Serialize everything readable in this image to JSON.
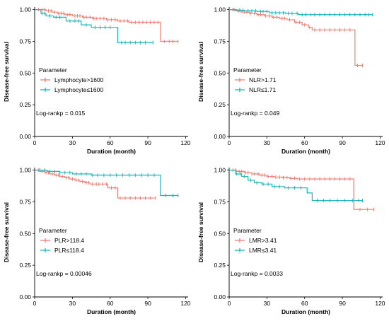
{
  "chart_data": [
    {
      "type": "line",
      "subtype": "kaplan-meier",
      "ylabel": "Disease-free survival",
      "xlabel": "Duration (month)",
      "xlim": [
        0,
        122
      ],
      "ylim": [
        0,
        1.02
      ],
      "xticks": [
        "0",
        "30",
        "60",
        "90",
        "120"
      ],
      "yticks": [
        "0.00",
        "0.25",
        "0.50",
        "0.75",
        "1.00"
      ],
      "legend_title": "Parameter",
      "annotation": "Log-rankp = 0.015",
      "series": [
        {
          "name": "Lymphocyte>1600",
          "color": "#F07F73",
          "x": [
            0,
            5,
            9,
            14,
            18,
            24,
            30,
            38,
            46,
            57,
            66,
            75,
            100,
            114
          ],
          "y": [
            1.0,
            1.0,
            0.99,
            0.98,
            0.97,
            0.96,
            0.95,
            0.94,
            0.93,
            0.92,
            0.91,
            0.9,
            0.75,
            0.75
          ],
          "censored_x": [
            3,
            6,
            8,
            11,
            13,
            16,
            19,
            21,
            23,
            26,
            28,
            32,
            34,
            36,
            39,
            41,
            44,
            47,
            49,
            52,
            55,
            58,
            61,
            64,
            68,
            71,
            74,
            77,
            80,
            83,
            86,
            89,
            92,
            95,
            98,
            103,
            107,
            110,
            114
          ]
        },
        {
          "name": "Lymphocyte≤1600",
          "color": "#1FB7BA",
          "x": [
            0,
            5,
            9,
            15,
            25,
            37,
            45,
            66,
            94
          ],
          "y": [
            1.0,
            0.97,
            0.95,
            0.94,
            0.91,
            0.88,
            0.86,
            0.74,
            0.74
          ],
          "censored_x": [
            6,
            8,
            12,
            17,
            20,
            28,
            32,
            35,
            41,
            48,
            52,
            56,
            60,
            69,
            72,
            76,
            80,
            84,
            88,
            94
          ]
        }
      ]
    },
    {
      "type": "line",
      "subtype": "kaplan-meier",
      "ylabel": "Disease-free survival",
      "xlabel": "Duration (month)",
      "xlim": [
        0,
        122
      ],
      "ylim": [
        0,
        1.02
      ],
      "xticks": [
        "0",
        "30",
        "60",
        "90",
        "120"
      ],
      "yticks": [
        "0.00",
        "0.25",
        "0.50",
        "0.75",
        "1.00"
      ],
      "legend_title": "Parameter",
      "annotation": "Log-rankp = 0.049",
      "series": [
        {
          "name": "NLR>1.71",
          "color": "#F07F73",
          "x": [
            0,
            5,
            10,
            16,
            22,
            28,
            34,
            40,
            46,
            52,
            58,
            63,
            66,
            99,
            100,
            106
          ],
          "y": [
            1.0,
            0.99,
            0.98,
            0.97,
            0.96,
            0.95,
            0.94,
            0.93,
            0.92,
            0.9,
            0.88,
            0.86,
            0.84,
            0.84,
            0.56,
            0.56
          ],
          "censored_x": [
            4,
            7,
            9,
            12,
            14,
            17,
            20,
            23,
            25,
            29,
            32,
            35,
            38,
            42,
            44,
            48,
            53,
            56,
            60,
            64,
            68,
            72,
            76,
            80,
            84,
            88,
            92,
            96,
            102,
            106
          ]
        },
        {
          "name": "NLR≤1.71",
          "color": "#1FB7BA",
          "x": [
            0,
            6,
            12,
            22,
            32,
            45,
            55,
            114
          ],
          "y": [
            1.0,
            0.995,
            0.99,
            0.985,
            0.975,
            0.97,
            0.96,
            0.96
          ],
          "censored_x": [
            3,
            8,
            11,
            15,
            18,
            21,
            25,
            27,
            30,
            34,
            37,
            40,
            43,
            47,
            50,
            54,
            58,
            61,
            65,
            68,
            72,
            76,
            80,
            84,
            88,
            92,
            96,
            100,
            104,
            108,
            111,
            114
          ]
        }
      ]
    },
    {
      "type": "line",
      "subtype": "kaplan-meier",
      "ylabel": "Disease-free survival",
      "xlabel": "Duration (month)",
      "xlim": [
        0,
        122
      ],
      "ylim": [
        0,
        1.02
      ],
      "xticks": [
        "0",
        "30",
        "60",
        "90",
        "120"
      ],
      "yticks": [
        "0.00",
        "0.25",
        "0.50",
        "0.75",
        "1.00"
      ],
      "legend_title": "Parameter",
      "annotation": "Log-rankp = 0.00046",
      "series": [
        {
          "name": "PLR>118.4",
          "color": "#F07F73",
          "x": [
            0,
            4,
            8,
            12,
            16,
            20,
            24,
            28,
            32,
            36,
            40,
            44,
            48,
            52,
            58,
            66,
            96
          ],
          "y": [
            1.0,
            0.99,
            0.98,
            0.97,
            0.96,
            0.95,
            0.94,
            0.93,
            0.92,
            0.91,
            0.9,
            0.89,
            0.89,
            0.89,
            0.86,
            0.78,
            0.78
          ],
          "censored_x": [
            3,
            6,
            9,
            11,
            14,
            17,
            19,
            22,
            25,
            27,
            30,
            33,
            35,
            38,
            41,
            43,
            46,
            49,
            51,
            54,
            57,
            61,
            64,
            68,
            72,
            76,
            80,
            84,
            88,
            92,
            96
          ]
        },
        {
          "name": "PLR≤118.4",
          "color": "#1FB7BA",
          "x": [
            0,
            10,
            20,
            30,
            45,
            100,
            114
          ],
          "y": [
            1.0,
            0.99,
            0.98,
            0.97,
            0.96,
            0.8,
            0.8
          ],
          "censored_x": [
            4,
            8,
            12,
            16,
            20,
            24,
            28,
            33,
            37,
            41,
            46,
            50,
            55,
            60,
            65,
            70,
            75,
            80,
            85,
            90,
            95,
            104,
            110,
            114
          ]
        }
      ]
    },
    {
      "type": "line",
      "subtype": "kaplan-meier",
      "ylabel": "Disease-free survival",
      "xlabel": "Duration (month)",
      "xlim": [
        0,
        122
      ],
      "ylim": [
        0,
        1.02
      ],
      "xticks": [
        "0",
        "30",
        "60",
        "90",
        "120"
      ],
      "yticks": [
        "0.00",
        "0.25",
        "0.50",
        "0.75",
        "1.00"
      ],
      "legend_title": "Parameter",
      "annotation": "Log-rankp = 0.0033",
      "series": [
        {
          "name": "LMR>3.41",
          "color": "#F07F73",
          "x": [
            0,
            6,
            12,
            18,
            24,
            30,
            36,
            42,
            48,
            54,
            99,
            115
          ],
          "y": [
            1.0,
            0.99,
            0.98,
            0.97,
            0.96,
            0.95,
            0.945,
            0.94,
            0.935,
            0.93,
            0.69,
            0.69
          ],
          "censored_x": [
            3,
            5,
            8,
            10,
            13,
            15,
            18,
            20,
            23,
            26,
            28,
            31,
            34,
            37,
            40,
            43,
            46,
            49,
            52,
            56,
            60,
            64,
            68,
            72,
            76,
            80,
            84,
            88,
            92,
            96,
            104,
            110,
            115
          ]
        },
        {
          "name": "LMR≤3.41",
          "color": "#1FB7BA",
          "x": [
            0,
            5,
            10,
            15,
            20,
            26,
            34,
            44,
            62,
            66,
            106
          ],
          "y": [
            1.0,
            0.97,
            0.95,
            0.92,
            0.9,
            0.89,
            0.87,
            0.86,
            0.82,
            0.76,
            0.76
          ],
          "censored_x": [
            6,
            9,
            12,
            17,
            22,
            27,
            31,
            36,
            40,
            47,
            52,
            57,
            70,
            75,
            80,
            86,
            92,
            98,
            103,
            106
          ]
        }
      ]
    }
  ]
}
